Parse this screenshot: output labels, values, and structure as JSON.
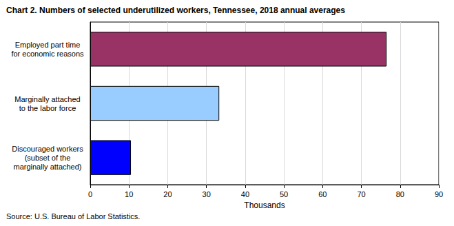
{
  "chart_data": {
    "type": "bar",
    "title": "Chart 2. Numbers of selected underutilized workers, Tennessee, 2018 annual averages",
    "orientation": "horizontal",
    "categories": [
      "Employed part time\nfor economic reasons",
      "Marginally attached\nto the labor force",
      "Discouraged workers\n(subset of the\nmarginally attached)"
    ],
    "values": [
      76.5,
      33.3,
      10.5
    ],
    "colors": [
      "#993366",
      "#99ccff",
      "#0000ff"
    ],
    "x_label": "Thousands",
    "xlim": [
      0,
      90
    ],
    "xticks": [
      0,
      10,
      20,
      30,
      40,
      50,
      60,
      70,
      80,
      90
    ],
    "grid": true,
    "source": "Source: U.S. Bureau of Labor Statistics."
  }
}
